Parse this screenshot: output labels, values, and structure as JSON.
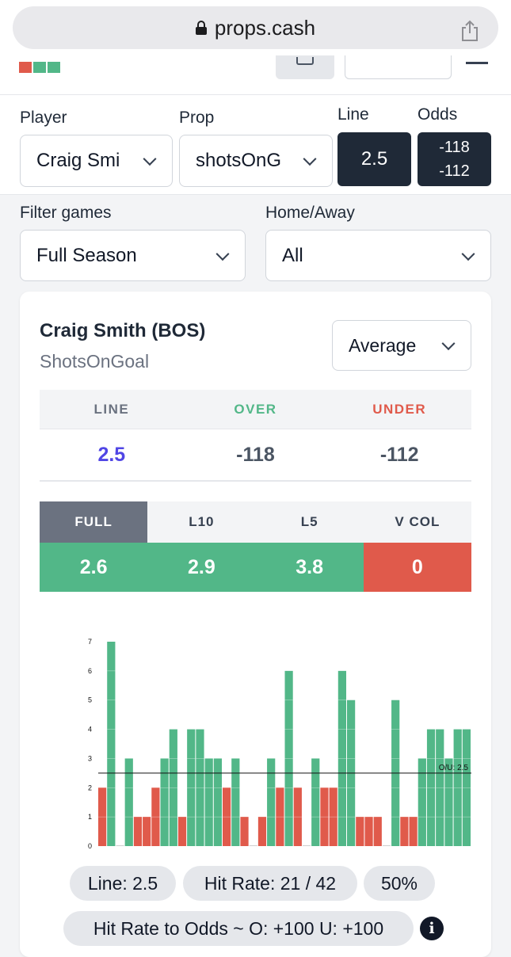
{
  "browser": {
    "url": "props.cash"
  },
  "colors": {
    "green": "#52b788",
    "red": "#e05a4b",
    "dark": "#1f2937",
    "purple": "#5046e5"
  },
  "controls": {
    "player_label": "Player",
    "player_value": "Craig Smi",
    "prop_label": "Prop",
    "prop_value": "shotsOnG",
    "line_label": "Line",
    "line_value": "2.5",
    "odds_label": "Odds",
    "odds_over": "-118",
    "odds_under": "-112",
    "filter_label": "Filter games",
    "filter_value": "Full Season",
    "homeaway_label": "Home/Away",
    "homeaway_value": "All"
  },
  "card": {
    "player": "Craig Smith (BOS)",
    "prop": "ShotsOnGoal",
    "stat_select": "Average",
    "table": {
      "headers": [
        "LINE",
        "OVER",
        "UNDER"
      ],
      "values": [
        "2.5",
        "-118",
        "-112"
      ]
    },
    "splits": {
      "tabs": [
        "FULL",
        "L10",
        "L5",
        "V COL"
      ],
      "values": [
        "2.6",
        "2.9",
        "3.8",
        "0"
      ]
    },
    "pills": {
      "line": "Line: 2.5",
      "hit_rate": "Hit Rate: 21 / 42",
      "percent": "50%",
      "odds": "Hit Rate to Odds ~ O: +100 U: +100",
      "info_glyph": "i"
    }
  },
  "chart_data": {
    "type": "bar",
    "y_ticks": [
      "0",
      "1",
      "2",
      "3",
      "4",
      "5",
      "6",
      "7"
    ],
    "ylim": [
      0,
      7
    ],
    "line": 2.5,
    "line_label": "O/U: 2.5",
    "values": [
      2,
      7,
      0,
      3,
      1,
      1,
      2,
      3,
      4,
      1,
      4,
      4,
      3,
      3,
      2,
      3,
      1,
      0,
      1,
      3,
      2,
      6,
      2,
      0,
      3,
      2,
      2,
      6,
      5,
      1,
      1,
      1,
      0,
      5,
      1,
      1,
      3,
      4,
      4,
      3,
      4,
      4
    ]
  }
}
